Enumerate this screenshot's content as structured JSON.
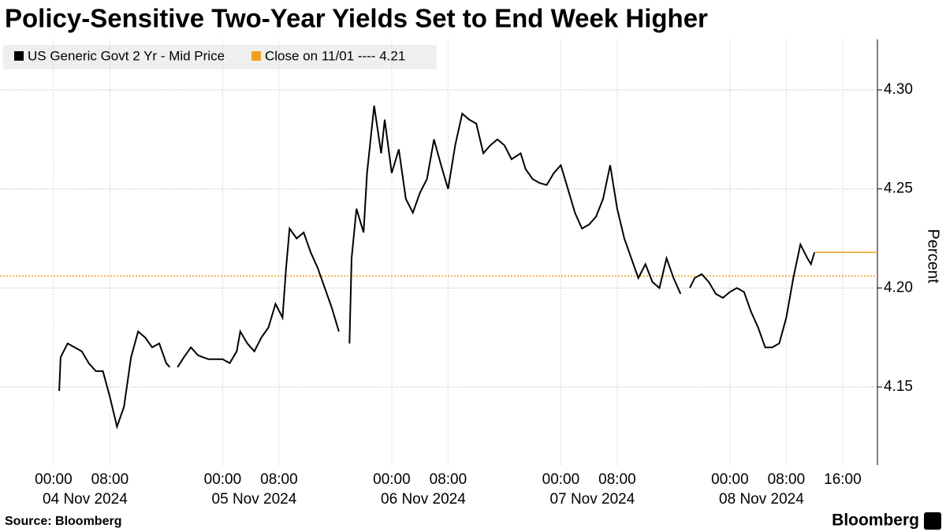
{
  "chart_data": {
    "type": "line",
    "title": "Policy-Sensitive Two-Year Yields Set to End Week Higher",
    "y_label": "Percent",
    "source": "Source: Bloomberg",
    "brand": "Bloomberg",
    "ylim": [
      4.1106,
      4.3255
    ],
    "yticks": [
      4.15,
      {
        "value": 4.2,
        "label": "4.20"
      },
      4.25,
      {
        "value": 4.3,
        "label": "4.30"
      }
    ],
    "xlim": [
      "2024-11-03T16:24",
      "2024-11-08T20:56"
    ],
    "xticks": [
      {
        "value": "2024-11-04T00:00",
        "label": "00:00"
      },
      {
        "value": "2024-11-04T08:00",
        "label": "08:00"
      },
      {
        "value": "2024-11-05T00:00",
        "label": "00:00"
      },
      {
        "value": "2024-11-05T08:00",
        "label": "08:00"
      },
      {
        "value": "2024-11-06T00:00",
        "label": "00:00"
      },
      {
        "value": "2024-11-06T08:00",
        "label": "08:00"
      },
      {
        "value": "2024-11-07T00:00",
        "label": "00:00"
      },
      {
        "value": "2024-11-07T08:00",
        "label": "08:00"
      },
      {
        "value": "2024-11-08T00:00",
        "label": "00:00"
      },
      {
        "value": "2024-11-08T08:00",
        "label": "08:00"
      },
      {
        "value": "2024-11-08T16:00",
        "label": "16:00"
      }
    ],
    "x_date_labels": [
      {
        "value": "2024-11-04T00:00",
        "label": "04 Nov 2024"
      },
      {
        "value": "2024-11-05T00:00",
        "label": "05 Nov 2024"
      },
      {
        "value": "2024-11-06T00:00",
        "label": "06 Nov 2024"
      },
      {
        "value": "2024-11-07T00:00",
        "label": "07 Nov 2024"
      },
      {
        "value": "2024-11-08T00:00",
        "label": "08 Nov 2024"
      }
    ],
    "grid": true,
    "series": [
      {
        "name": "US Generic Govt 2 Yr - Mid Price",
        "color": "#000000",
        "x": [
          "2024-11-04T00:48",
          "2024-11-04T01:00",
          "2024-11-04T02:00",
          "2024-11-04T03:00",
          "2024-11-04T04:00",
          "2024-11-04T05:00",
          "2024-11-04T06:00",
          "2024-11-04T07:00",
          "2024-11-04T08:00",
          "2024-11-04T09:00",
          "2024-11-04T10:00",
          "2024-11-04T11:00",
          "2024-11-04T12:00",
          "2024-11-04T13:00",
          "2024-11-04T14:00",
          "2024-11-04T15:00",
          "2024-11-04T16:00",
          "2024-11-04T16:30",
          "2024-11-04T17:00",
          "2024-11-04T17:36",
          "2024-11-04T18:30",
          "2024-11-04T19:30",
          "2024-11-04T20:30",
          "2024-11-04T22:00",
          "2024-11-05T00:00",
          "2024-11-05T01:00",
          "2024-11-05T02:00",
          "2024-11-05T02:30",
          "2024-11-05T03:30",
          "2024-11-05T04:30",
          "2024-11-05T05:30",
          "2024-11-05T06:30",
          "2024-11-05T07:30",
          "2024-11-05T08:30",
          "2024-11-05T09:00",
          "2024-11-05T09:30",
          "2024-11-05T10:30",
          "2024-11-05T11:30",
          "2024-11-05T12:30",
          "2024-11-05T13:30",
          "2024-11-05T14:30",
          "2024-11-05T15:30",
          "2024-11-05T16:30",
          "2024-11-05T17:00",
          "2024-11-05T18:00",
          "2024-11-05T18:18",
          "2024-11-05T19:00",
          "2024-11-05T20:00",
          "2024-11-05T20:30",
          "2024-11-05T21:30",
          "2024-11-05T22:30",
          "2024-11-05T23:00",
          "2024-11-06T00:00",
          "2024-11-06T01:00",
          "2024-11-06T02:00",
          "2024-11-06T03:00",
          "2024-11-06T04:00",
          "2024-11-06T05:00",
          "2024-11-06T06:00",
          "2024-11-06T07:00",
          "2024-11-06T08:00",
          "2024-11-06T09:00",
          "2024-11-06T10:00",
          "2024-11-06T11:00",
          "2024-11-06T12:00",
          "2024-11-06T13:00",
          "2024-11-06T14:00",
          "2024-11-06T15:00",
          "2024-11-06T16:00",
          "2024-11-06T17:00",
          "2024-11-06T18:18",
          "2024-11-06T19:00",
          "2024-11-06T20:00",
          "2024-11-06T21:00",
          "2024-11-06T22:00",
          "2024-11-06T23:00",
          "2024-11-07T00:00",
          "2024-11-07T01:00",
          "2024-11-07T02:00",
          "2024-11-07T03:00",
          "2024-11-07T04:00",
          "2024-11-07T05:00",
          "2024-11-07T06:00",
          "2024-11-07T07:00",
          "2024-11-07T08:00",
          "2024-11-07T09:00",
          "2024-11-07T10:00",
          "2024-11-07T11:00",
          "2024-11-07T12:00",
          "2024-11-07T13:00",
          "2024-11-07T14:00",
          "2024-11-07T15:00",
          "2024-11-07T16:00",
          "2024-11-07T17:00",
          "2024-11-07T17:30",
          "2024-11-07T18:18",
          "2024-11-07T19:00",
          "2024-11-07T20:00",
          "2024-11-07T21:00",
          "2024-11-07T22:00",
          "2024-11-07T23:00",
          "2024-11-08T00:00",
          "2024-11-08T01:00",
          "2024-11-08T02:00",
          "2024-11-08T03:00",
          "2024-11-08T04:00",
          "2024-11-08T05:00",
          "2024-11-08T06:00",
          "2024-11-08T07:00",
          "2024-11-08T08:00",
          "2024-11-08T09:00",
          "2024-11-08T10:00",
          "2024-11-08T11:00",
          "2024-11-08T11:30",
          "2024-11-08T12:00"
        ],
        "values": [
          4.148,
          4.165,
          4.172,
          4.17,
          4.168,
          4.162,
          4.158,
          4.158,
          4.145,
          4.13,
          4.14,
          4.165,
          4.178,
          4.175,
          4.17,
          4.172,
          4.162,
          4.16,
          null,
          4.16,
          4.165,
          4.17,
          4.166,
          4.164,
          4.164,
          4.162,
          4.168,
          4.178,
          4.172,
          4.168,
          4.175,
          4.18,
          4.192,
          4.185,
          4.21,
          4.23,
          4.225,
          4.228,
          4.218,
          4.21,
          4.2,
          4.19,
          4.178,
          null,
          4.172,
          4.215,
          4.24,
          4.228,
          4.258,
          4.292,
          4.268,
          4.285,
          4.258,
          4.27,
          4.245,
          4.238,
          4.248,
          4.255,
          4.275,
          4.262,
          4.25,
          4.272,
          4.288,
          4.285,
          4.283,
          4.268,
          4.272,
          4.275,
          4.272,
          4.265,
          4.268,
          4.26,
          4.255,
          4.253,
          4.252,
          4.258,
          4.262,
          4.25,
          4.238,
          4.23,
          4.232,
          4.236,
          4.245,
          4.262,
          4.24,
          4.225,
          4.215,
          4.205,
          4.212,
          4.203,
          4.2,
          4.215,
          4.205,
          4.197,
          null,
          4.2,
          4.205,
          4.207,
          4.203,
          4.197,
          4.195,
          4.198,
          4.2,
          4.198,
          4.188,
          4.18,
          4.17,
          4.17,
          4.172,
          4.185,
          4.205,
          4.222,
          4.215,
          4.212,
          4.218
        ]
      }
    ],
    "close_line": {
      "name": "Close on 11/01 ---- 4.21",
      "color": "#f0a01e",
      "value": 4.206
    }
  }
}
